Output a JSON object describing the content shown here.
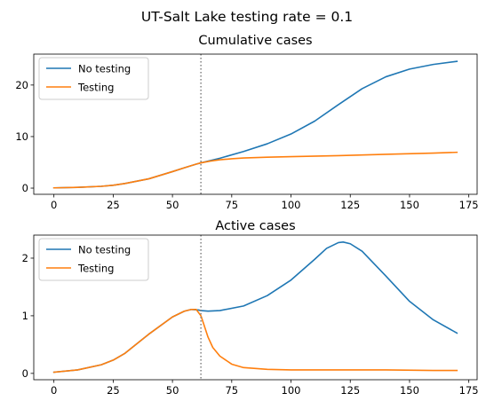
{
  "figure": {
    "suptitle": "UT-Salt Lake testing rate = 0.1"
  },
  "colors": {
    "no_testing": "#1f77b4",
    "testing": "#ff7f0e",
    "vline": "#808080",
    "axes": "#000000",
    "legend_border": "#cccccc"
  },
  "chart_data": [
    {
      "type": "line",
      "title": "Cumulative cases",
      "xlabel": "",
      "ylabel": "",
      "xlim": [
        -8.5,
        178.5
      ],
      "ylim": [
        -1.2,
        26
      ],
      "xticks": [
        0,
        25,
        50,
        75,
        100,
        125,
        150,
        175
      ],
      "yticks": [
        0,
        10,
        20
      ],
      "vline_x": 62,
      "grid": false,
      "legend_position": "top-left",
      "series": [
        {
          "name": "No testing",
          "color_key": "no_testing",
          "x": [
            0,
            10,
            20,
            25,
            30,
            40,
            50,
            55,
            60,
            62,
            70,
            80,
            90,
            100,
            110,
            120,
            130,
            140,
            150,
            160,
            170
          ],
          "y": [
            0.05,
            0.15,
            0.35,
            0.55,
            0.9,
            1.8,
            3.2,
            3.95,
            4.65,
            4.9,
            5.8,
            7.1,
            8.6,
            10.5,
            13.0,
            16.2,
            19.3,
            21.6,
            23.1,
            24.0,
            24.6
          ]
        },
        {
          "name": "Testing",
          "color_key": "testing",
          "x": [
            0,
            10,
            20,
            25,
            30,
            40,
            50,
            55,
            60,
            62,
            66,
            70,
            75,
            80,
            90,
            100,
            120,
            140,
            160,
            170
          ],
          "y": [
            0.05,
            0.15,
            0.35,
            0.55,
            0.9,
            1.8,
            3.2,
            3.95,
            4.65,
            4.9,
            5.25,
            5.5,
            5.7,
            5.85,
            6.0,
            6.1,
            6.3,
            6.55,
            6.8,
            6.95
          ]
        }
      ]
    },
    {
      "type": "line",
      "title": "Active cases",
      "xlabel": "",
      "ylabel": "",
      "xlim": [
        -8.5,
        178.5
      ],
      "ylim": [
        -0.11,
        2.4
      ],
      "xticks": [
        0,
        25,
        50,
        75,
        100,
        125,
        150,
        175
      ],
      "yticks": [
        0,
        1,
        2
      ],
      "vline_x": 62,
      "grid": false,
      "legend_position": "top-left",
      "series": [
        {
          "name": "No testing",
          "color_key": "no_testing",
          "x": [
            0,
            10,
            20,
            25,
            30,
            40,
            50,
            55,
            58,
            61,
            62,
            65,
            70,
            80,
            90,
            100,
            110,
            115,
            120,
            122,
            125,
            130,
            140,
            150,
            160,
            170
          ],
          "y": [
            0.02,
            0.06,
            0.15,
            0.23,
            0.35,
            0.68,
            0.98,
            1.08,
            1.11,
            1.1,
            1.09,
            1.08,
            1.09,
            1.17,
            1.35,
            1.62,
            1.98,
            2.17,
            2.27,
            2.28,
            2.25,
            2.12,
            1.69,
            1.25,
            0.93,
            0.7
          ]
        },
        {
          "name": "Testing",
          "color_key": "testing",
          "x": [
            0,
            10,
            20,
            25,
            30,
            40,
            50,
            55,
            58,
            60,
            62,
            63,
            65,
            67,
            70,
            75,
            80,
            90,
            100,
            120,
            140,
            160,
            170
          ],
          "y": [
            0.02,
            0.06,
            0.15,
            0.23,
            0.35,
            0.68,
            0.98,
            1.08,
            1.11,
            1.11,
            1.0,
            0.88,
            0.63,
            0.45,
            0.3,
            0.16,
            0.1,
            0.07,
            0.06,
            0.06,
            0.06,
            0.05,
            0.05
          ]
        }
      ]
    }
  ]
}
